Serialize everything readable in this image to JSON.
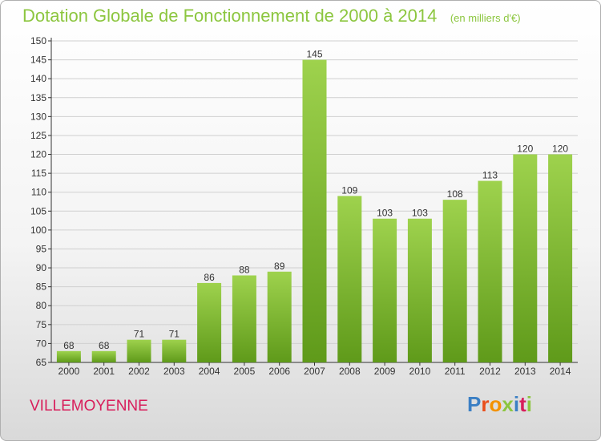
{
  "header": {
    "title": "Dotation Globale de Fonctionnement de 2000 à 2014",
    "subtitle": "(en milliers d'€)"
  },
  "footer": {
    "commune": "VILLEMOYENNE",
    "logo_letters": [
      "P",
      "r",
      "o",
      "x",
      "i",
      "t",
      "i"
    ],
    "logo_colors": [
      "#3b7fc4",
      "#e94e1b",
      "#f39200",
      "#8cc63f",
      "#3b7fc4",
      "#d81e5b",
      "#8cc63f"
    ]
  },
  "colors": {
    "bar_light": "#9ed24d",
    "bar_dark": "#5f9a1a",
    "title": "#8cc63f",
    "commune": "#d81e5b"
  },
  "chart_data": {
    "type": "bar",
    "title": "Dotation Globale de Fonctionnement de 2000 à 2014",
    "subtitle": "(en milliers d'€)",
    "xlabel": "",
    "ylabel": "",
    "categories": [
      "2000",
      "2001",
      "2002",
      "2003",
      "2004",
      "2005",
      "2006",
      "2007",
      "2008",
      "2009",
      "2010",
      "2011",
      "2012",
      "2013",
      "2014"
    ],
    "values": [
      68,
      68,
      71,
      71,
      86,
      88,
      89,
      145,
      109,
      103,
      103,
      108,
      113,
      120,
      120
    ],
    "ylim": [
      65,
      150
    ],
    "ytick_step": 5,
    "grid": true,
    "legend": "none"
  }
}
